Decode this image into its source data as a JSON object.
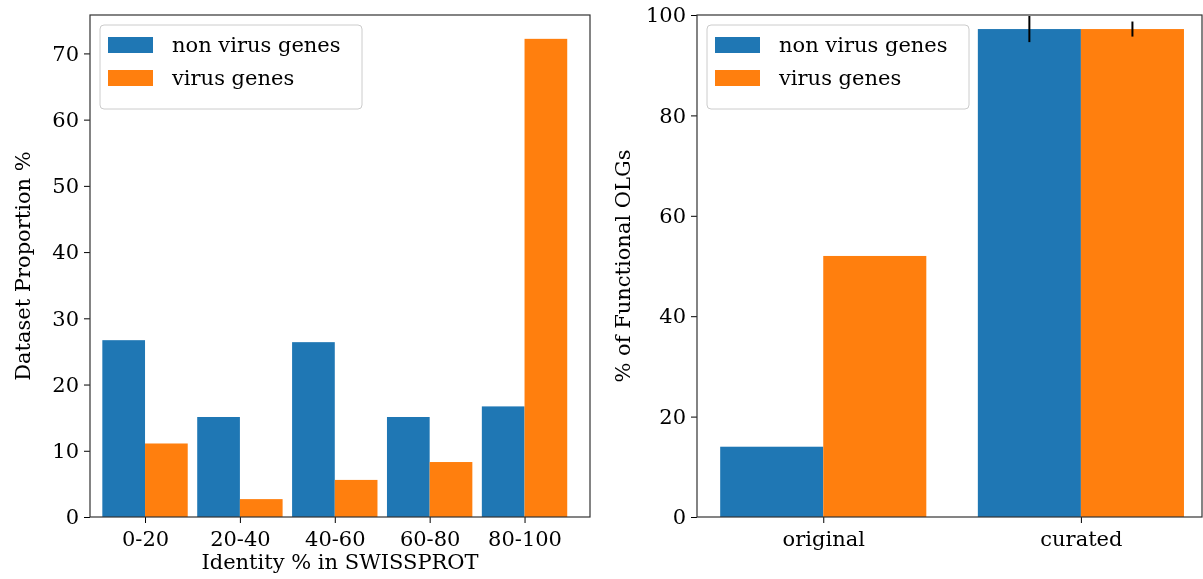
{
  "chart_data": [
    {
      "type": "bar",
      "xlabel": "Identity % in SWISSPROT",
      "ylabel": "Dataset Proportion %",
      "categories": [
        "0-20",
        "20-40",
        "40-60",
        "60-80",
        "80-100"
      ],
      "series": [
        {
          "name": "non virus genes",
          "color": "#1f77b4",
          "values": [
            26.7,
            15.1,
            26.4,
            15.1,
            16.7
          ]
        },
        {
          "name": "virus genes",
          "color": "#ff7f0e",
          "values": [
            11.1,
            2.7,
            5.6,
            8.3,
            72.2
          ]
        }
      ],
      "ylim": [
        0,
        75.8
      ],
      "yticks": [
        0,
        10,
        20,
        30,
        40,
        50,
        60,
        70
      ],
      "grid": false,
      "legend": "top left"
    },
    {
      "type": "bar",
      "ylabel": "% of Functional OLGs",
      "categories": [
        "original",
        "curated"
      ],
      "series": [
        {
          "name": "non virus genes",
          "color": "#1f77b4",
          "values": [
            14,
            97.2
          ],
          "errors": [
            null,
            2.6
          ]
        },
        {
          "name": "virus genes",
          "color": "#ff7f0e",
          "values": [
            52,
            97.2
          ],
          "errors": [
            null,
            1.5
          ]
        }
      ],
      "ylim": [
        0,
        100
      ],
      "yticks": [
        0,
        20,
        40,
        60,
        80,
        100
      ],
      "grid": false,
      "legend": "top left"
    }
  ]
}
